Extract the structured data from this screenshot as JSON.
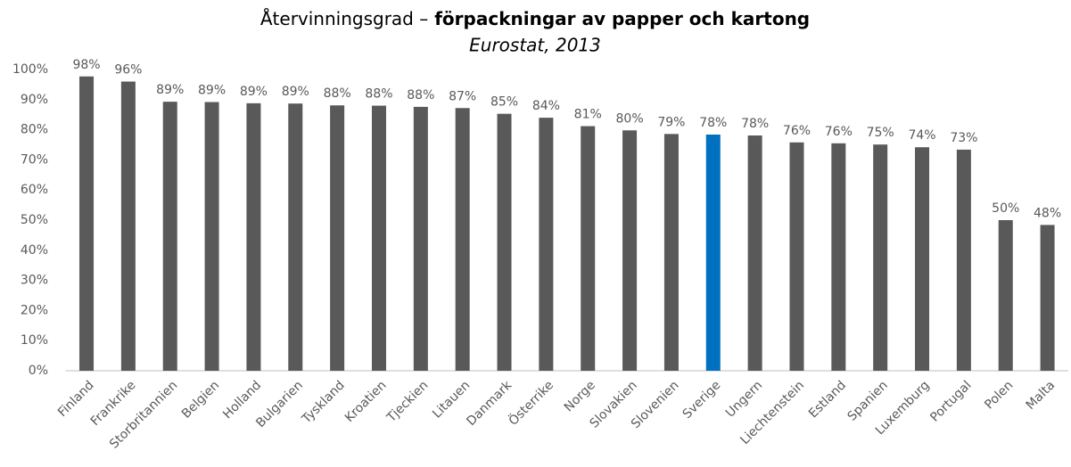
{
  "chart_data": {
    "type": "bar",
    "title_parts": [
      "Återvinningsgrad –",
      "förpackningar av papper och kartong"
    ],
    "subtitle": "Eurostat, 2013",
    "categories": [
      "Finland",
      "Frankrike",
      "Storbritannien",
      "Belgien",
      "Holland",
      "Bulgarien",
      "Tyskland",
      "Kroatien",
      "Tjeckien",
      "Litauen",
      "Danmark",
      "Österrike",
      "Norge",
      "Slovakien",
      "Slovenien",
      "Sverige",
      "Ungern",
      "Liechtenstein",
      "Estland",
      "Spanien",
      "Luxemburg",
      "Portugal",
      "Polen",
      "Malta"
    ],
    "values": [
      97.7,
      96,
      89.3,
      89.2,
      88.8,
      88.7,
      88.1,
      88,
      87.6,
      87.2,
      85.3,
      84,
      81.2,
      79.8,
      78.6,
      78.4,
      78.1,
      75.8,
      75.5,
      75.1,
      74.2,
      73.4,
      50,
      48.4
    ],
    "value_labels": [
      "98%",
      "96%",
      "89%",
      "89%",
      "89%",
      "89%",
      "88%",
      "88%",
      "88%",
      "87%",
      "85%",
      "84%",
      "81%",
      "80%",
      "79%",
      "78%",
      "78%",
      "76%",
      "76%",
      "75%",
      "74%",
      "73%",
      "50%",
      "48%"
    ],
    "colors": [
      "#595959",
      "#595959",
      "#595959",
      "#595959",
      "#595959",
      "#595959",
      "#595959",
      "#595959",
      "#595959",
      "#595959",
      "#595959",
      "#595959",
      "#595959",
      "#595959",
      "#595959",
      "#0070c0",
      "#595959",
      "#595959",
      "#595959",
      "#595959",
      "#595959",
      "#595959",
      "#595959",
      "#595959"
    ],
    "ylim": [
      0,
      100
    ],
    "yticks": [
      {
        "value": 0,
        "label": "0%"
      },
      {
        "value": 10,
        "label": "10%"
      },
      {
        "value": 20,
        "label": "20%"
      },
      {
        "value": 30,
        "label": "30%"
      },
      {
        "value": 40,
        "label": "40%"
      },
      {
        "value": 50,
        "label": "50%"
      },
      {
        "value": 60,
        "label": "60%"
      },
      {
        "value": 70,
        "label": "70%"
      },
      {
        "value": 80,
        "label": "80%"
      },
      {
        "value": 90,
        "label": "90%"
      },
      {
        "value": 100,
        "label": "100%"
      }
    ],
    "grid": false
  }
}
